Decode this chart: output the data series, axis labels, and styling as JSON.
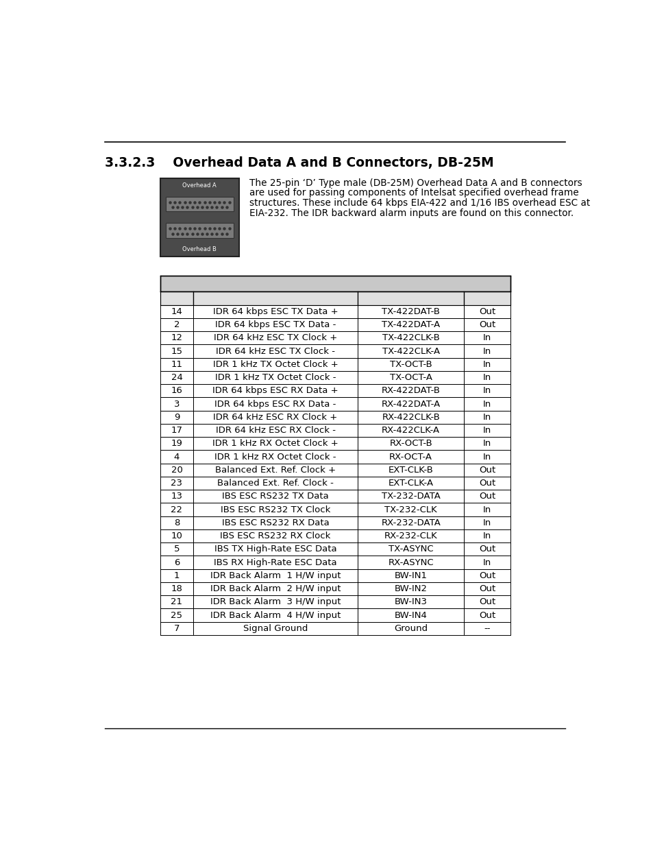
{
  "title": "3.3.2.3    Overhead Data A and B Connectors, DB-25M",
  "body_text_lines": [
    "The 25-pin ‘D’ Type male (DB-25M) Overhead Data A and B connectors",
    "are used for passing components of Intelsat specified overhead frame",
    "structures. These include 64 kbps EIA-422 and 1/16 IBS overhead ESC at",
    "EIA-232. The IDR backward alarm inputs are found on this connector."
  ],
  "table_data": [
    [
      "14",
      "IDR 64 kbps ESC TX Data +",
      "TX-422DAT-B",
      "Out"
    ],
    [
      "2",
      "IDR 64 kbps ESC TX Data -",
      "TX-422DAT-A",
      "Out"
    ],
    [
      "12",
      "IDR 64 kHz ESC TX Clock +",
      "TX-422CLK-B",
      "In"
    ],
    [
      "15",
      "IDR 64 kHz ESC TX Clock -",
      "TX-422CLK-A",
      "In"
    ],
    [
      "11",
      "IDR 1 kHz TX Octet Clock +",
      "TX-OCT-B",
      "In"
    ],
    [
      "24",
      "IDR 1 kHz TX Octet Clock -",
      "TX-OCT-A",
      "In"
    ],
    [
      "16",
      "IDR 64 kbps ESC RX Data +",
      "RX-422DAT-B",
      "In"
    ],
    [
      "3",
      "IDR 64 kbps ESC RX Data -",
      "RX-422DAT-A",
      "In"
    ],
    [
      "9",
      "IDR 64 kHz ESC RX Clock +",
      "RX-422CLK-B",
      "In"
    ],
    [
      "17",
      "IDR 64 kHz ESC RX Clock -",
      "RX-422CLK-A",
      "In"
    ],
    [
      "19",
      "IDR 1 kHz RX Octet Clock +",
      "RX-OCT-B",
      "In"
    ],
    [
      "4",
      "IDR 1 kHz RX Octet Clock -",
      "RX-OCT-A",
      "In"
    ],
    [
      "20",
      "Balanced Ext. Ref. Clock +",
      "EXT-CLK-B",
      "Out"
    ],
    [
      "23",
      "Balanced Ext. Ref. Clock -",
      "EXT-CLK-A",
      "Out"
    ],
    [
      "13",
      "IBS ESC RS232 TX Data",
      "TX-232-DATA",
      "Out"
    ],
    [
      "22",
      "IBS ESC RS232 TX Clock",
      "TX-232-CLK",
      "In"
    ],
    [
      "8",
      "IBS ESC RS232 RX Data",
      "RX-232-DATA",
      "In"
    ],
    [
      "10",
      "IBS ESC RS232 RX Clock",
      "RX-232-CLK",
      "In"
    ],
    [
      "5",
      "IBS TX High-Rate ESC Data",
      "TX-ASYNC",
      "Out"
    ],
    [
      "6",
      "IBS RX High-Rate ESC Data",
      "RX-ASYNC",
      "In"
    ],
    [
      "1",
      "IDR Back Alarm  1 H/W input",
      "BW-IN1",
      "Out"
    ],
    [
      "18",
      "IDR Back Alarm  2 H/W input",
      "BW-IN2",
      "Out"
    ],
    [
      "21",
      "IDR Back Alarm  3 H/W input",
      "BW-IN3",
      "Out"
    ],
    [
      "25",
      "IDR Back Alarm  4 H/W input",
      "BW-IN4",
      "Out"
    ],
    [
      "7",
      "Signal Ground",
      "Ground",
      "--"
    ]
  ],
  "bg_color": "#ffffff",
  "header_bg": "#c8c8c8",
  "subheader_bg": "#e0e0e0",
  "text_color": "#000000",
  "title_color": "#000000",
  "img_label_top": "Overhead A",
  "img_label_bot": "Overhead B"
}
